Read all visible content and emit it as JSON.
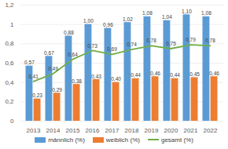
{
  "chart_data": {
    "type": "bar",
    "categories": [
      "2013",
      "2014",
      "2015",
      "2016",
      "2017",
      "2018",
      "2019",
      "2020",
      "2021",
      "2022"
    ],
    "series": [
      {
        "name": "männlich (%)",
        "type": "bar",
        "color": "#5b9bd5",
        "values": [
          0.57,
          0.67,
          0.88,
          1.0,
          0.96,
          1.02,
          1.08,
          1.04,
          1.1,
          1.08
        ],
        "value_labels": [
          "0,57",
          "0,67",
          "0,88",
          "1,00",
          "0,96",
          "1,02",
          "1,08",
          "1,04",
          "1,10",
          "1,08"
        ]
      },
      {
        "name": "weiblich (%)",
        "type": "bar",
        "color": "#ed7d31",
        "values": [
          0.23,
          0.29,
          0.38,
          0.43,
          0.4,
          0.44,
          0.46,
          0.44,
          0.45,
          0.46
        ],
        "value_labels": [
          "0,23",
          "0,29",
          "0,38",
          "0,43",
          "0,40",
          "0,44",
          "0,46",
          "0,44",
          "0,45",
          "0,46"
        ]
      },
      {
        "name": "gesamt (%)",
        "type": "line",
        "color": "#70ad47",
        "values": [
          0.41,
          0.49,
          0.64,
          0.73,
          0.69,
          0.74,
          0.78,
          0.75,
          0.79,
          0.78
        ],
        "value_labels": [
          "0,41",
          "0,49",
          "0,64",
          "0,73",
          "0,69",
          "0,74",
          "0,78",
          "0,75",
          "0,79",
          "0,78"
        ]
      }
    ],
    "ylim": [
      0,
      1.2
    ],
    "yticks": [
      0,
      {
        "value": 0.2,
        "label": "0,2"
      },
      {
        "value": 0.4,
        "label": "0,4"
      },
      {
        "value": 0.6,
        "label": "0,6"
      },
      {
        "value": 0.8,
        "label": "0,8"
      },
      1,
      {
        "value": 1.2,
        "label": "1,2"
      }
    ],
    "grid": true,
    "data_labels": true,
    "legend": "bottom"
  }
}
